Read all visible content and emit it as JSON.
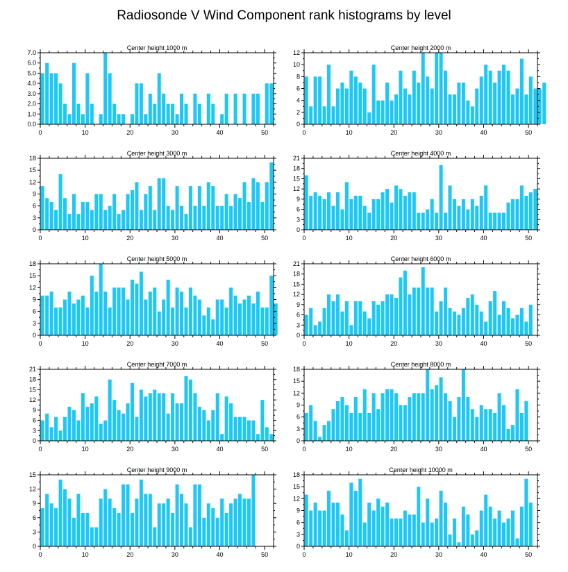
{
  "title": "Radiosonde V Wind Component rank histograms by level",
  "bar_color": "#1ec8f5",
  "chart_data": [
    {
      "type": "bar",
      "title": "Center height 1000 m",
      "xlim": [
        0,
        52
      ],
      "ylim": [
        0,
        7
      ],
      "yticks": [
        "0.0",
        "1.0",
        "2.0",
        "3.0",
        "4.0",
        "5.0",
        "6.0",
        "7.0"
      ],
      "xticks": [
        "0",
        "10",
        "20",
        "30",
        "40",
        "50"
      ],
      "values": [
        5,
        6,
        5,
        5,
        4,
        2,
        1,
        6,
        2,
        1,
        5,
        2,
        0,
        1,
        7,
        5,
        2,
        1,
        1,
        0,
        1,
        4,
        4,
        1,
        3,
        2,
        5,
        3,
        2,
        2,
        1,
        3,
        2,
        0,
        3,
        2,
        0,
        3,
        2,
        0,
        1,
        3,
        0,
        3,
        0,
        3,
        0,
        3,
        3,
        0,
        4,
        4
      ]
    },
    {
      "type": "bar",
      "title": "Center height 2000 m",
      "xlim": [
        0,
        52
      ],
      "ylim": [
        0,
        12
      ],
      "yticks": [
        "0",
        "2",
        "4",
        "6",
        "8",
        "10",
        "12"
      ],
      "xticks": [
        "0",
        "10",
        "20",
        "30",
        "40",
        "50"
      ],
      "values": [
        8,
        3,
        8,
        8,
        3,
        10,
        3,
        6,
        7,
        6,
        9,
        8,
        7,
        6,
        2,
        10,
        4,
        4,
        7,
        4,
        5,
        9,
        6,
        5,
        9,
        7,
        12,
        8,
        6,
        12,
        12,
        9,
        5,
        5,
        7,
        7,
        4,
        3,
        6,
        8,
        10,
        9,
        7,
        9,
        10,
        9,
        5,
        6,
        11,
        5,
        8,
        6,
        6,
        7
      ]
    },
    {
      "type": "bar",
      "title": "Center height 3000 m",
      "xlim": [
        0,
        52
      ],
      "ylim": [
        0,
        18
      ],
      "yticks": [
        "0",
        "3",
        "6",
        "9",
        "12",
        "15",
        "18"
      ],
      "xticks": [
        "0",
        "10",
        "20",
        "30",
        "40",
        "50"
      ],
      "values": [
        11,
        8,
        7,
        5,
        14,
        8,
        4,
        9,
        4,
        7,
        7,
        5,
        9,
        9,
        5,
        6,
        9,
        4,
        5,
        9,
        10,
        12,
        5,
        9,
        11,
        5,
        13,
        13,
        6,
        5,
        11,
        6,
        4,
        11,
        6,
        11,
        6,
        12,
        11,
        6,
        6,
        9,
        6,
        9,
        8,
        12,
        7,
        13,
        12,
        7,
        12,
        17
      ]
    },
    {
      "type": "bar",
      "title": "Center height 4000 m",
      "xlim": [
        0,
        52
      ],
      "ylim": [
        0,
        21
      ],
      "yticks": [
        "0",
        "3",
        "6",
        "9",
        "12",
        "15",
        "18",
        "21"
      ],
      "xticks": [
        "0",
        "10",
        "20",
        "30",
        "40",
        "50"
      ],
      "values": [
        16,
        10,
        11,
        10,
        9,
        11,
        7,
        11,
        6,
        14,
        9,
        10,
        10,
        7,
        5,
        9,
        9,
        11,
        12,
        8,
        13,
        12,
        10,
        11,
        11,
        5,
        5,
        6,
        9,
        5,
        19,
        5,
        13,
        9,
        7,
        9,
        6,
        9,
        7,
        10,
        13,
        5,
        5,
        5,
        5,
        8,
        9,
        9,
        13,
        10,
        11,
        12
      ]
    },
    {
      "type": "bar",
      "title": "Center height 5000 m",
      "xlim": [
        0,
        52
      ],
      "ylim": [
        0,
        18
      ],
      "yticks": [
        "0",
        "3",
        "6",
        "9",
        "12",
        "15",
        "18"
      ],
      "xticks": [
        "0",
        "10",
        "20",
        "30",
        "40",
        "50"
      ],
      "values": [
        10,
        10,
        11,
        7,
        7,
        9,
        11,
        8,
        9,
        10,
        7,
        15,
        11,
        18,
        11,
        7,
        12,
        12,
        12,
        9,
        14,
        13,
        16,
        9,
        11,
        12,
        6,
        9,
        14,
        7,
        12,
        11,
        7,
        12,
        10,
        9,
        5,
        7,
        4,
        9,
        9,
        7,
        12,
        10,
        8,
        9,
        10,
        8,
        11,
        7,
        7,
        15,
        8
      ]
    },
    {
      "type": "bar",
      "title": "Center height 6000 m",
      "xlim": [
        0,
        52
      ],
      "ylim": [
        0,
        21
      ],
      "yticks": [
        "0",
        "3",
        "6",
        "9",
        "12",
        "15",
        "18",
        "21"
      ],
      "xticks": [
        "0",
        "10",
        "20",
        "30",
        "40",
        "50"
      ],
      "values": [
        6,
        8,
        3,
        4,
        8,
        12,
        10,
        12,
        7,
        10,
        3,
        10,
        10,
        7,
        5,
        10,
        9,
        10,
        12,
        12,
        11,
        17,
        19,
        12,
        14,
        14,
        20,
        14,
        14,
        7,
        10,
        14,
        8,
        7,
        6,
        8,
        11,
        12,
        9,
        7,
        4,
        10,
        13,
        6,
        10,
        8,
        5,
        6,
        8,
        4,
        9
      ]
    },
    {
      "type": "bar",
      "title": "Center height 7000 m",
      "xlim": [
        0,
        52
      ],
      "ylim": [
        0,
        21
      ],
      "yticks": [
        "0",
        "3",
        "6",
        "9",
        "12",
        "15",
        "18",
        "21"
      ],
      "xticks": [
        "0",
        "10",
        "20",
        "30",
        "40",
        "50"
      ],
      "values": [
        6,
        8,
        4,
        7,
        3,
        7,
        10,
        9,
        6,
        14,
        10,
        11,
        13,
        5,
        6,
        18,
        12,
        9,
        8,
        11,
        17,
        7,
        15,
        13,
        14,
        15,
        14,
        14,
        8,
        14,
        11,
        11,
        19,
        18,
        14,
        10,
        9,
        6,
        9,
        14,
        2,
        13,
        11,
        7,
        7,
        7,
        6,
        6,
        2,
        12,
        4,
        2
      ]
    },
    {
      "type": "bar",
      "title": "Center height 8000 m",
      "xlim": [
        0,
        52
      ],
      "ylim": [
        0,
        18
      ],
      "yticks": [
        "0",
        "3",
        "6",
        "9",
        "12",
        "15",
        "18"
      ],
      "xticks": [
        "0",
        "10",
        "20",
        "30",
        "40",
        "50"
      ],
      "values": [
        7,
        9,
        5,
        1,
        4,
        5,
        8,
        10,
        11,
        9,
        7,
        11,
        7,
        13,
        7,
        12,
        8,
        12,
        13,
        13,
        12,
        9,
        9,
        11,
        12,
        12,
        12,
        18,
        13,
        14,
        16,
        12,
        10,
        6,
        11,
        18,
        11,
        8,
        6,
        9,
        8,
        8,
        7,
        12,
        9,
        3,
        4,
        13,
        7,
        10
      ]
    },
    {
      "type": "bar",
      "title": "Center height 9000 m",
      "xlim": [
        0,
        52
      ],
      "ylim": [
        0,
        15
      ],
      "yticks": [
        "0",
        "3",
        "6",
        "9",
        "12",
        "15"
      ],
      "xticks": [
        "0",
        "10",
        "20",
        "30",
        "40",
        "50"
      ],
      "values": [
        8,
        11,
        9,
        8,
        14,
        12,
        10,
        6,
        11,
        7,
        7,
        4,
        4,
        10,
        12,
        10,
        8,
        7,
        13,
        13,
        7,
        10,
        14,
        11,
        11,
        4,
        9,
        9,
        10,
        7,
        13,
        11,
        9,
        4,
        13,
        13,
        6,
        9,
        8,
        6,
        10,
        7,
        9,
        10,
        11,
        10,
        10,
        15
      ]
    },
    {
      "type": "bar",
      "title": "Center height 10000 m",
      "xlim": [
        0,
        52
      ],
      "ylim": [
        0,
        18
      ],
      "yticks": [
        "0",
        "3",
        "6",
        "9",
        "12",
        "15",
        "18"
      ],
      "xticks": [
        "0",
        "10",
        "20",
        "30",
        "40",
        "50"
      ],
      "values": [
        13,
        9,
        11,
        9,
        9,
        14,
        11,
        11,
        8,
        4,
        16,
        14,
        17,
        6,
        11,
        9,
        12,
        10,
        11,
        7,
        7,
        7,
        9,
        8,
        8,
        15,
        6,
        12,
        6,
        7,
        14,
        11,
        3,
        7,
        1,
        10,
        8,
        3,
        4,
        9,
        13,
        10,
        7,
        9,
        6,
        7,
        9,
        2,
        10,
        17,
        11
      ]
    }
  ]
}
